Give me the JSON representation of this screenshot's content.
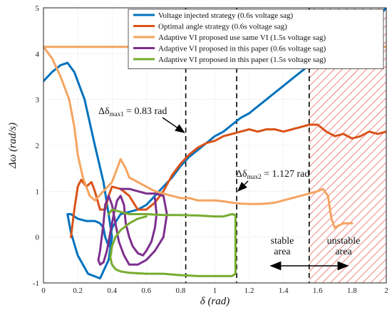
{
  "chart_data": {
    "type": "line",
    "xlabel": "δ (rad)",
    "ylabel": "Δω (rad/s)",
    "xlim": [
      0,
      2
    ],
    "ylim": [
      -1,
      5
    ],
    "xticks": [
      "0",
      "0.2",
      "0.4",
      "0.6",
      "0.8",
      "1",
      "1.2",
      "1.4",
      "1.6",
      "1.8",
      "2"
    ],
    "yticks": [
      "-1",
      "0",
      "1",
      "2",
      "3",
      "4",
      "5"
    ],
    "grid": true,
    "legend_position": "top-right",
    "series": [
      {
        "name": "Voltage injected strategy (0.6s voltage sag)",
        "color": "#0072BD",
        "x": [
          0,
          0.05,
          0.1,
          0.14,
          0.18,
          0.24,
          0.3,
          0.35,
          0.38,
          0.4,
          0.38,
          0.33,
          0.26,
          0.2,
          0.16,
          0.14,
          0.16,
          0.2,
          0.25,
          0.3,
          0.33,
          0.35,
          0.36,
          0.37,
          0.38,
          0.4,
          0.45,
          0.5,
          0.55,
          0.6,
          0.65,
          0.7,
          0.75,
          0.8,
          0.85,
          0.9,
          0.95,
          1.0,
          1.05,
          1.1,
          1.15,
          1.2,
          1.25,
          1.3,
          1.35,
          1.4,
          1.45,
          1.5,
          1.55,
          1.6,
          1.65,
          1.7,
          1.75,
          1.8,
          1.85,
          1.9,
          1.95,
          2.0
        ],
        "y": [
          3.4,
          3.6,
          3.75,
          3.8,
          3.6,
          3.0,
          2.0,
          1.2,
          0.5,
          0.0,
          -0.5,
          -0.9,
          -0.8,
          -0.4,
          0.1,
          0.5,
          0.5,
          0.4,
          0.35,
          0.35,
          0.3,
          0.2,
          0.0,
          -0.1,
          -0.2,
          0.2,
          0.5,
          0.55,
          0.6,
          0.7,
          0.9,
          1.1,
          1.3,
          1.55,
          1.75,
          1.9,
          2.05,
          2.2,
          2.3,
          2.45,
          2.6,
          2.7,
          2.85,
          3.0,
          3.15,
          3.3,
          3.45,
          3.6,
          3.75,
          3.85,
          4.0,
          4.15,
          4.3,
          4.45,
          4.55,
          4.65,
          4.8,
          5.0
        ]
      },
      {
        "name": "Optimal angle strategy (0.6s voltage sag)",
        "color": "#D95319",
        "x": [
          0.16,
          0.18,
          0.2,
          0.22,
          0.25,
          0.28,
          0.3,
          0.33,
          0.36,
          0.38,
          0.4,
          0.45,
          0.5,
          0.55,
          0.6,
          0.65,
          0.7,
          0.75,
          0.8,
          0.85,
          0.9,
          0.95,
          1.0,
          1.05,
          1.1,
          1.15,
          1.2,
          1.25,
          1.3,
          1.35,
          1.4,
          1.45,
          1.5,
          1.55,
          1.6,
          1.65,
          1.7,
          1.75,
          1.8,
          1.85,
          1.9,
          1.95,
          2.0
        ],
        "y": [
          0.0,
          0.6,
          1.1,
          1.25,
          1.1,
          1.2,
          1.0,
          0.6,
          0.6,
          0.9,
          1.1,
          1.05,
          0.9,
          0.6,
          0.6,
          0.75,
          1.0,
          1.35,
          1.6,
          1.8,
          1.95,
          2.05,
          2.1,
          2.2,
          2.25,
          2.3,
          2.35,
          2.3,
          2.35,
          2.35,
          2.3,
          2.35,
          2.4,
          2.45,
          2.45,
          2.3,
          2.2,
          2.25,
          2.15,
          2.2,
          2.3,
          2.25,
          2.3
        ]
      },
      {
        "name": "Adaptive VI proposed use same VI (1.5s voltage sag)",
        "color": "#F4A460",
        "x": [
          2.0,
          1.8,
          1.5,
          1.2,
          0.9,
          0.6,
          0.3,
          0.1,
          0.0,
          0.05,
          0.1,
          0.15,
          0.18,
          0.2,
          0.23,
          0.27,
          0.3,
          0.35,
          0.4,
          0.45,
          0.48,
          0.5,
          0.55,
          0.6,
          0.65,
          0.7,
          0.75,
          0.8,
          0.85,
          0.9,
          0.95,
          1.0,
          1.05,
          1.1,
          1.15,
          1.2,
          1.25,
          1.3,
          1.35,
          1.4,
          1.45,
          1.5,
          1.55,
          1.6,
          1.63,
          1.66,
          1.68,
          1.7,
          1.72,
          1.75,
          1.8
        ],
        "y": [
          4.15,
          4.15,
          4.15,
          4.15,
          4.15,
          4.15,
          4.15,
          4.15,
          4.15,
          3.9,
          3.5,
          3.0,
          2.4,
          1.8,
          1.3,
          0.9,
          0.8,
          1.0,
          1.2,
          1.7,
          1.5,
          1.3,
          1.2,
          1.1,
          1.0,
          0.95,
          0.9,
          0.85,
          0.85,
          0.8,
          0.8,
          0.8,
          0.78,
          0.75,
          0.73,
          0.72,
          0.72,
          0.73,
          0.75,
          0.8,
          0.85,
          0.9,
          0.95,
          1.0,
          1.05,
          0.9,
          0.4,
          0.2,
          0.25,
          0.3,
          0.3
        ]
      },
      {
        "name": "Adaptive VI proposed in this paper (0.6s voltage sag)",
        "color": "#7E2F8E",
        "x": [
          0.45,
          0.5,
          0.55,
          0.6,
          0.65,
          0.7,
          0.72,
          0.7,
          0.65,
          0.6,
          0.55,
          0.5,
          0.47,
          0.44,
          0.42,
          0.4,
          0.38,
          0.36,
          0.35,
          0.34,
          0.33,
          0.32,
          0.33,
          0.35,
          0.37,
          0.39,
          0.41,
          0.43,
          0.45,
          0.47,
          0.48,
          0.5,
          0.52,
          0.55,
          0.58,
          0.6,
          0.63,
          0.65,
          0.66,
          0.65
        ],
        "y": [
          1.05,
          1.05,
          1.0,
          0.95,
          0.95,
          0.9,
          0.5,
          0.0,
          -0.3,
          -0.5,
          -0.6,
          -0.6,
          -0.4,
          -0.1,
          0.3,
          0.7,
          0.9,
          0.7,
          0.3,
          0.0,
          -0.3,
          -0.5,
          -0.6,
          -0.55,
          -0.3,
          0.1,
          0.5,
          0.8,
          0.9,
          0.7,
          0.3,
          0.0,
          -0.2,
          -0.35,
          -0.4,
          -0.3,
          -0.1,
          0.2,
          0.5,
          0.85
        ]
      },
      {
        "name": "Adaptive VI proposed in this paper (1.5s voltage sag)",
        "color": "#77AC30",
        "x": [
          0.38,
          0.4,
          0.45,
          0.5,
          0.6,
          0.7,
          0.8,
          0.9,
          1.0,
          1.05,
          1.1,
          1.12,
          1.12,
          1.1,
          1.0,
          0.9,
          0.8,
          0.7,
          0.6,
          0.5,
          0.45,
          0.42,
          0.4,
          0.39,
          0.4,
          0.42,
          0.45,
          0.5,
          0.55,
          0.6
        ],
        "y": [
          0.5,
          0.6,
          0.55,
          0.5,
          0.5,
          0.48,
          0.48,
          0.47,
          0.45,
          0.45,
          0.5,
          0.48,
          -0.8,
          -0.85,
          -0.85,
          -0.85,
          -0.83,
          -0.8,
          -0.8,
          -0.78,
          -0.75,
          -0.7,
          -0.6,
          -0.45,
          -0.2,
          0.0,
          0.15,
          0.3,
          0.4,
          0.45
        ]
      }
    ],
    "vlines": [
      {
        "x": 0.83,
        "style": "dashed",
        "color": "#000000"
      },
      {
        "x": 1.127,
        "style": "dashed",
        "color": "#000000"
      },
      {
        "x": 1.55,
        "style": "dashed",
        "color": "#000000"
      }
    ],
    "hatched_region": {
      "x_from": 1.55,
      "x_to": 2.0,
      "color": "#E8423A"
    },
    "annotations": [
      {
        "text": "Δδmax1 = 0.83 rad",
        "label": "Δδ",
        "sub": "max1",
        "rest": " = 0.83 rad"
      },
      {
        "text": "Δδmax2 = 1.127 rad",
        "label": "Δδ",
        "sub": "max2",
        "rest": " = 1.127 rad"
      },
      {
        "text": "stable area",
        "line1": "stable",
        "line2": "area"
      },
      {
        "text": "unstable area",
        "line1": "unstable",
        "line2": "area"
      }
    ]
  }
}
